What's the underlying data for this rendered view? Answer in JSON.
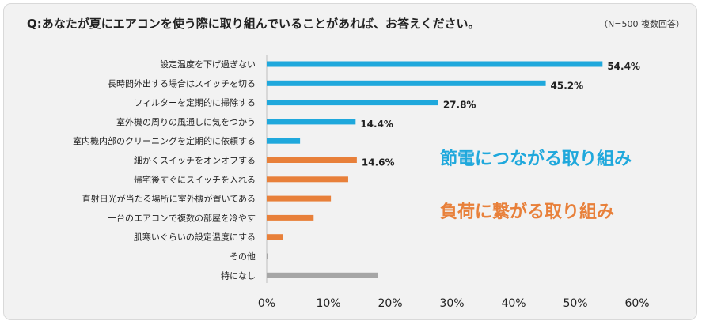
{
  "header": {
    "title": "Q:あなたが夏にエアコンを使う際に取り組んでいることがあれば、お答えください。",
    "note": "（N=500 複数回答）"
  },
  "colors": {
    "saving": "#1fa8dc",
    "burden": "#e8803a",
    "none": "#a6a6a6"
  },
  "annotations": {
    "saving_label": "節電につながる取り組み",
    "burden_label": "負荷に繋がる取り組み"
  },
  "chart_data": {
    "type": "bar",
    "orientation": "horizontal",
    "title": "Q:あなたが夏にエアコンを使う際に取り組んでいることがあれば、お答えください。",
    "xlabel": "",
    "ylabel": "",
    "xlim": [
      0,
      60
    ],
    "xticks": [
      "0%",
      "10%",
      "20%",
      "30%",
      "40%",
      "50%",
      "60%"
    ],
    "categories": [
      "設定温度を下げ過ぎない",
      "長時間外出する場合はスイッチを切る",
      "フィルターを定期的に掃除する",
      "室外機の周りの風通しに気をつかう",
      "室内機内部のクリーニングを定期的に依頼する",
      "細かくスイッチをオンオフする",
      "帰宅後すぐにスイッチを入れる",
      "直射日光が当たる場所に室外機が置いてある",
      "一台のエアコンで複数の部屋を冷やす",
      "肌寒いぐらいの設定温度にする",
      "その他",
      "特になし"
    ],
    "values": [
      54.4,
      45.2,
      27.8,
      14.4,
      5.4,
      14.6,
      13.2,
      10.4,
      7.6,
      2.6,
      0.2,
      18.0
    ],
    "groups": [
      "saving",
      "saving",
      "saving",
      "saving",
      "saving",
      "burden",
      "burden",
      "burden",
      "burden",
      "burden",
      "none",
      "none"
    ],
    "data_labels": [
      "54.4%",
      "45.2%",
      "27.8%",
      "14.4%",
      "",
      "14.6%",
      "",
      "",
      "",
      "",
      "",
      ""
    ]
  }
}
